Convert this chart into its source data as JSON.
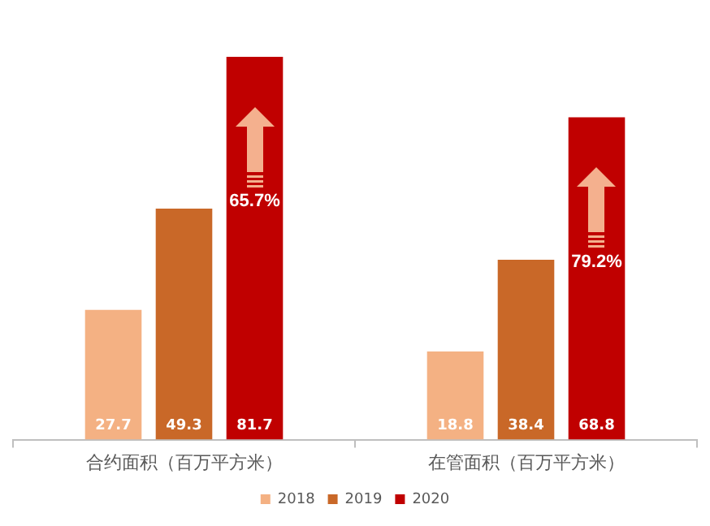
{
  "chart_data": {
    "type": "bar",
    "categories": [
      "合约面积（百万平方米）",
      "在管面积（百万平方米）"
    ],
    "series": [
      {
        "name": "2018",
        "color": "#f4b183",
        "values": [
          27.7,
          18.8
        ]
      },
      {
        "name": "2019",
        "color": "#c96828",
        "values": [
          49.3,
          38.4
        ]
      },
      {
        "name": "2020",
        "color": "#c00000",
        "values": [
          81.7,
          68.8
        ]
      }
    ],
    "data_labels": true,
    "legend": "bottom",
    "grid": false,
    "tick_labels": "x",
    "annotations": [
      "65.7%",
      "79.2%"
    ]
  }
}
